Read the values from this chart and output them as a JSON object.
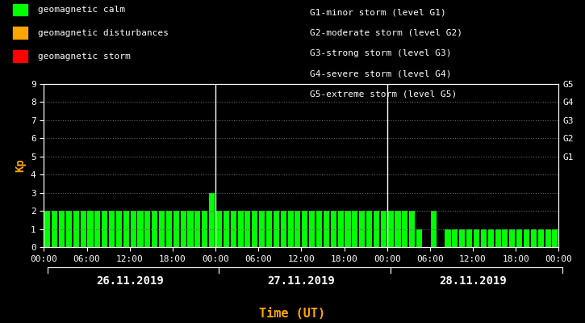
{
  "background_color": "#000000",
  "plot_bg_color": "#000000",
  "bar_color_calm": "#00ff00",
  "bar_color_disturbance": "#ffa500",
  "bar_color_storm": "#ff0000",
  "text_color": "#ffffff",
  "xlabel_color": "#ffa500",
  "ylabel_color": "#ffa500",
  "ylabel": "Kp",
  "xlabel": "Time (UT)",
  "ylim": [
    0,
    9
  ],
  "yticks": [
    0,
    1,
    2,
    3,
    4,
    5,
    6,
    7,
    8,
    9
  ],
  "right_labels": [
    "G1",
    "G2",
    "G3",
    "G4",
    "G5"
  ],
  "right_label_yvals": [
    5,
    6,
    7,
    8,
    9
  ],
  "days": [
    "26.11.2019",
    "27.11.2019",
    "28.11.2019"
  ],
  "legend_items": [
    {
      "label": "geomagnetic calm",
      "color": "#00ff00"
    },
    {
      "label": "geomagnetic disturbances",
      "color": "#ffa500"
    },
    {
      "label": "geomagnetic storm",
      "color": "#ff0000"
    }
  ],
  "legend2_lines": [
    "G1-minor storm (level G1)",
    "G2-moderate storm (level G2)",
    "G3-strong storm (level G3)",
    "G4-severe storm (level G4)",
    "G5-extreme storm (level G5)"
  ],
  "kp_values": [
    2,
    2,
    2,
    2,
    2,
    2,
    2,
    2,
    2,
    2,
    2,
    2,
    2,
    2,
    2,
    2,
    2,
    2,
    2,
    2,
    2,
    2,
    2,
    3,
    2,
    2,
    2,
    2,
    2,
    2,
    2,
    2,
    2,
    2,
    2,
    2,
    2,
    2,
    2,
    2,
    2,
    2,
    2,
    2,
    2,
    2,
    2,
    2,
    2,
    2,
    2,
    2,
    1,
    0,
    2,
    0,
    1,
    1,
    1,
    1,
    1,
    1,
    1,
    1,
    1,
    1,
    1,
    1,
    1,
    1,
    1,
    1
  ],
  "num_bars_per_day": 24,
  "bar_width": 0.8,
  "font_family": "monospace",
  "font_size_ticks": 8,
  "font_size_legend": 8,
  "font_size_dates": 10,
  "font_size_right": 8,
  "font_size_ylabel": 10
}
